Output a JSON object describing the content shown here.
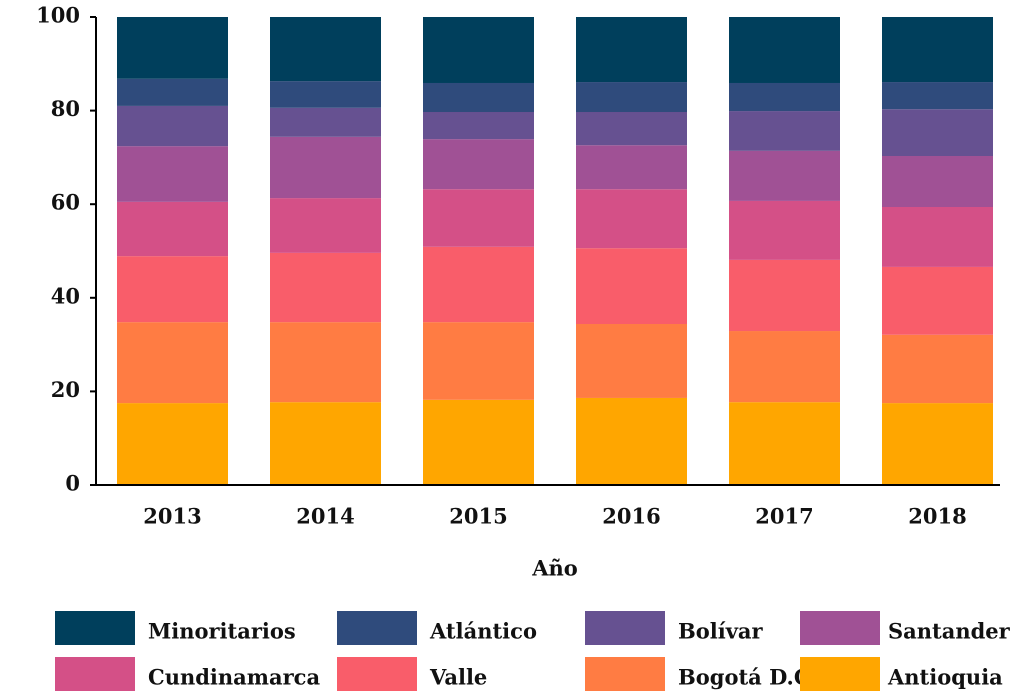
{
  "chart_data": {
    "type": "stacked_bar",
    "x_label": "Año",
    "categories": [
      "2013",
      "2014",
      "2015",
      "2016",
      "2017",
      "2018"
    ],
    "ylim": [
      0,
      100
    ],
    "yticks": [
      0,
      20,
      40,
      60,
      80,
      100
    ],
    "grid": false,
    "series": [
      {
        "name": "Minoritarios",
        "color": "#003f5c",
        "values": [
          13.2,
          13.7,
          14.1,
          13.9,
          14.1,
          13.9
        ]
      },
      {
        "name": "Atlántico",
        "color": "#2f4b7c",
        "values": [
          5.8,
          5.7,
          6.2,
          6.4,
          6.0,
          5.8
        ]
      },
      {
        "name": "Bolívar",
        "color": "#665191",
        "values": [
          8.6,
          6.2,
          5.8,
          7.1,
          8.5,
          10.0
        ]
      },
      {
        "name": "Santander",
        "color": "#a05195",
        "values": [
          11.9,
          13.1,
          10.7,
          9.4,
          10.7,
          10.9
        ]
      },
      {
        "name": "Cundinamarca",
        "color": "#d45087",
        "values": [
          11.6,
          11.7,
          12.3,
          12.6,
          12.6,
          12.8
        ]
      },
      {
        "name": "Valle",
        "color": "#f95d6a",
        "values": [
          14.1,
          14.8,
          16.1,
          16.2,
          15.2,
          14.5
        ]
      },
      {
        "name": "Bogotá D.C.",
        "color": "#ff7c43",
        "values": [
          17.3,
          17.1,
          16.6,
          15.8,
          15.2,
          14.6
        ]
      },
      {
        "name": "Antioquia",
        "color": "#ffa600",
        "values": [
          17.5,
          17.7,
          18.2,
          18.6,
          17.7,
          17.5
        ]
      }
    ]
  }
}
